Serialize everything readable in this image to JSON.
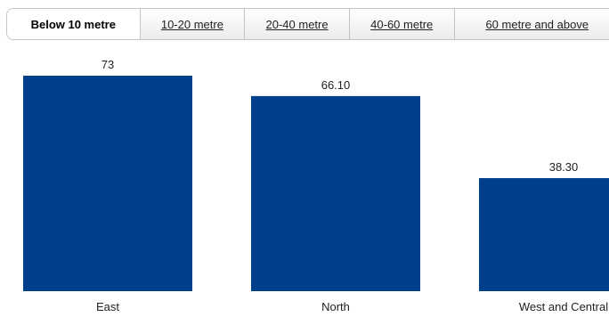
{
  "tabs": [
    {
      "label": "Below 10 metre",
      "active": true
    },
    {
      "label": "10-20 metre",
      "active": false
    },
    {
      "label": "20-40 metre",
      "active": false
    },
    {
      "label": "40-60 metre",
      "active": false
    },
    {
      "label": "60 metre and above",
      "active": false
    }
  ],
  "chart_data": {
    "type": "bar",
    "title": "",
    "xlabel": "",
    "ylabel": "",
    "categories": [
      "East",
      "North",
      "West and Central"
    ],
    "values": [
      73,
      66.1,
      38.3
    ],
    "value_labels": [
      "73",
      "66.10",
      "38.30"
    ],
    "ylim": [
      0,
      73
    ],
    "grid": false,
    "legend": "none",
    "bar_color": "#003f8a"
  }
}
